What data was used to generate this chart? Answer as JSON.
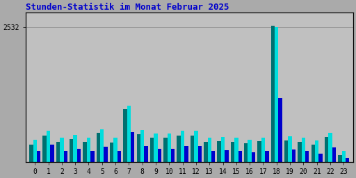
{
  "title": "Stunden-Statistik im Monat Februar 2025",
  "ytick_label": "2532",
  "hours": [
    0,
    1,
    2,
    3,
    4,
    5,
    6,
    7,
    8,
    9,
    10,
    11,
    12,
    13,
    14,
    15,
    16,
    17,
    18,
    19,
    20,
    21,
    22,
    23
  ],
  "seiten": [
    330,
    490,
    370,
    430,
    370,
    540,
    360,
    990,
    520,
    450,
    450,
    500,
    500,
    370,
    390,
    380,
    350,
    390,
    2550,
    400,
    380,
    320,
    470,
    130
  ],
  "dateien": [
    420,
    580,
    460,
    510,
    460,
    610,
    460,
    1060,
    600,
    530,
    530,
    580,
    580,
    450,
    470,
    460,
    420,
    460,
    2532,
    480,
    460,
    400,
    540,
    210
  ],
  "anfragen": [
    200,
    320,
    200,
    250,
    200,
    280,
    200,
    560,
    300,
    250,
    250,
    300,
    300,
    200,
    220,
    200,
    180,
    200,
    1200,
    230,
    210,
    160,
    270,
    70
  ],
  "color_seiten": "#007070",
  "color_dateien": "#00dddd",
  "color_anfragen": "#0000cc",
  "bg_color": "#aaaaaa",
  "plot_bg": "#c0c0c0",
  "title_color": "#0000cc",
  "border_color": "#000000",
  "ylim": [
    0,
    2800
  ],
  "bar_width": 0.28,
  "grid_color": "#999999",
  "right_label_seiten_color": "#007070",
  "right_label_dateien_color": "#00cccc",
  "right_label_anfragen_color": "#006600"
}
